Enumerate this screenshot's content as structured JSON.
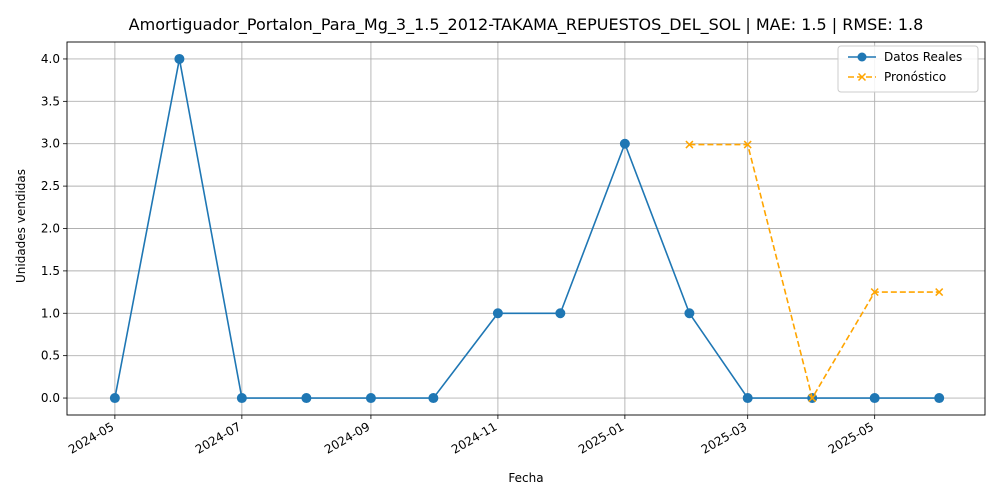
{
  "chart_data": {
    "type": "line",
    "title": "Amortiguador_Portalon_Para_Mg_3_1.5_2012-TAKAMA_REPUESTOS_DEL_SOL | MAE: 1.5 | RMSE: 1.8",
    "xlabel": "Fecha",
    "ylabel": "Unidades vendidas",
    "xlim": [
      "2024-04-08",
      "2025-06-23"
    ],
    "ylim": [
      -0.2,
      4.2
    ],
    "grid": true,
    "legend_position": "top-right",
    "x_ticks": [
      "2024-05",
      "2024-07",
      "2024-09",
      "2024-11",
      "2025-01",
      "2025-03",
      "2025-05"
    ],
    "y_ticks": [
      "0.0",
      "0.5",
      "1.0",
      "1.5",
      "2.0",
      "2.5",
      "3.0",
      "3.5",
      "4.0"
    ],
    "series": [
      {
        "name": "Datos Reales",
        "color": "#1f77b4",
        "style": "solid",
        "marker": "circle",
        "x": [
          "2024-05-01",
          "2024-06-01",
          "2024-07-01",
          "2024-08-01",
          "2024-09-01",
          "2024-10-01",
          "2024-11-01",
          "2024-12-01",
          "2025-01-01",
          "2025-02-01",
          "2025-03-01",
          "2025-04-01",
          "2025-05-01",
          "2025-06-01"
        ],
        "values": [
          0,
          4,
          0,
          0,
          0,
          0,
          1,
          1,
          3,
          1,
          0,
          0,
          0,
          0
        ]
      },
      {
        "name": "Pronóstico",
        "color": "#ffa500",
        "style": "dashed",
        "marker": "x",
        "x": [
          "2025-02-01",
          "2025-03-01",
          "2025-04-01",
          "2025-05-01",
          "2025-06-01"
        ],
        "values": [
          2.99,
          2.99,
          0.0,
          1.25,
          1.25
        ]
      }
    ]
  }
}
